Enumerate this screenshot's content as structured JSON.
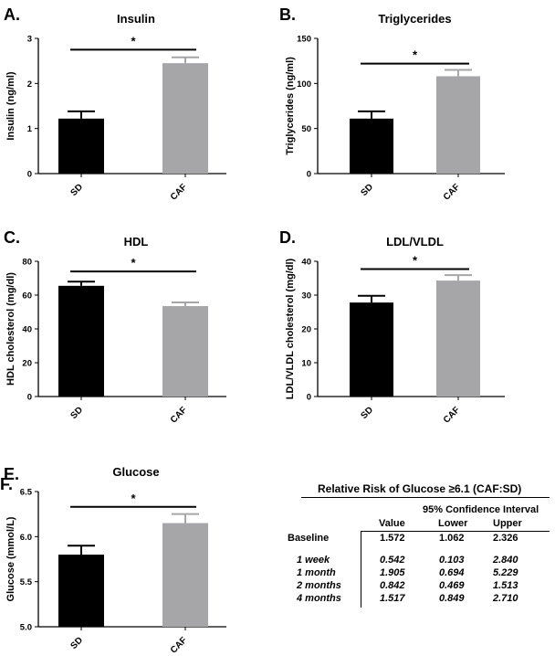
{
  "panels": [
    {
      "letter": "A.",
      "chart_data": {
        "type": "bar",
        "title": "Insulin",
        "ylabel": "Insulin (ng/ml)",
        "xlabel": "",
        "categories": [
          "SD",
          "CAF"
        ],
        "values": [
          1.22,
          2.45
        ],
        "errors": [
          0.16,
          0.13
        ],
        "bar_colors": [
          "#000000",
          "#a6a6a8"
        ],
        "ylim": [
          0,
          3
        ],
        "yticks": [
          0,
          1,
          2,
          3
        ],
        "ytick_labels": [
          "0",
          "1",
          "2",
          "3"
        ],
        "significance": "*",
        "bracket_value": 2.75
      }
    },
    {
      "letter": "B.",
      "chart_data": {
        "type": "bar",
        "title": "Triglycerides",
        "ylabel": "Triglycerides (ng/ml)",
        "xlabel": "",
        "categories": [
          "SD",
          "CAF"
        ],
        "values": [
          61,
          108
        ],
        "errors": [
          8,
          7
        ],
        "bar_colors": [
          "#000000",
          "#a6a6a8"
        ],
        "ylim": [
          0,
          150
        ],
        "yticks": [
          0,
          50,
          100,
          150
        ],
        "ytick_labels": [
          "0",
          "50",
          "100",
          "150"
        ],
        "significance": "*",
        "bracket_value": 122
      }
    },
    {
      "letter": "C.",
      "chart_data": {
        "type": "bar",
        "title": "HDL",
        "ylabel": "HDL cholesterol (mg/dl)",
        "xlabel": "",
        "categories": [
          "SD",
          "CAF"
        ],
        "values": [
          65.5,
          53.5
        ],
        "errors": [
          2.5,
          2.2
        ],
        "bar_colors": [
          "#000000",
          "#a6a6a8"
        ],
        "ylim": [
          0,
          80
        ],
        "yticks": [
          0,
          20,
          40,
          60,
          80
        ],
        "ytick_labels": [
          "0",
          "20",
          "40",
          "60",
          "80"
        ],
        "significance": "*",
        "bracket_value": 74
      }
    },
    {
      "letter": "D.",
      "chart_data": {
        "type": "bar",
        "title": "LDL/VLDL",
        "ylabel": "LDL/VLDL cholesterol (mg/dl)",
        "xlabel": "",
        "categories": [
          "SD",
          "CAF"
        ],
        "values": [
          27.8,
          34.3
        ],
        "errors": [
          2.0,
          1.6
        ],
        "bar_colors": [
          "#000000",
          "#a6a6a8"
        ],
        "ylim": [
          0,
          40
        ],
        "yticks": [
          0,
          10,
          20,
          30,
          40
        ],
        "ytick_labels": [
          "0",
          "10",
          "20",
          "30",
          "40"
        ],
        "significance": "*",
        "bracket_value": 37.7
      }
    },
    {
      "letter": "E.",
      "chart_data": {
        "type": "bar",
        "title": "Glucose",
        "ylabel": "Glucose (mmol/L)",
        "xlabel": "",
        "categories": [
          "SD",
          "CAF"
        ],
        "values": [
          5.8,
          6.15
        ],
        "errors": [
          0.1,
          0.1
        ],
        "bar_colors": [
          "#000000",
          "#a6a6a8"
        ],
        "ylim": [
          5.0,
          6.5
        ],
        "yticks": [
          5.0,
          5.5,
          6.0,
          6.5
        ],
        "ytick_labels": [
          "5.0",
          "5.5",
          "6.0",
          "6.5"
        ],
        "significance": "*",
        "bracket_value": 6.33
      }
    }
  ],
  "table": {
    "letter": "F.",
    "chart_data": {
      "type": "table",
      "title": "Relative Risk of Glucose ≥6.1 (CAF:SD)",
      "ci_header": "95% Confidence Interval",
      "columns": [
        "Value",
        "Lower",
        "Upper"
      ],
      "baseline": {
        "label": "Baseline",
        "values": [
          "1.572",
          "1.062",
          "2.326"
        ]
      },
      "rows": [
        {
          "label": "1 week",
          "values": [
            "0.542",
            "0.103",
            "2.840"
          ]
        },
        {
          "label": "1 month",
          "values": [
            "1.905",
            "0.694",
            "5.229"
          ]
        },
        {
          "label": "2 months",
          "values": [
            "0.842",
            "0.469",
            "1.513"
          ]
        },
        {
          "label": "4 months",
          "values": [
            "1.517",
            "0.849",
            "2.710"
          ]
        }
      ]
    }
  }
}
